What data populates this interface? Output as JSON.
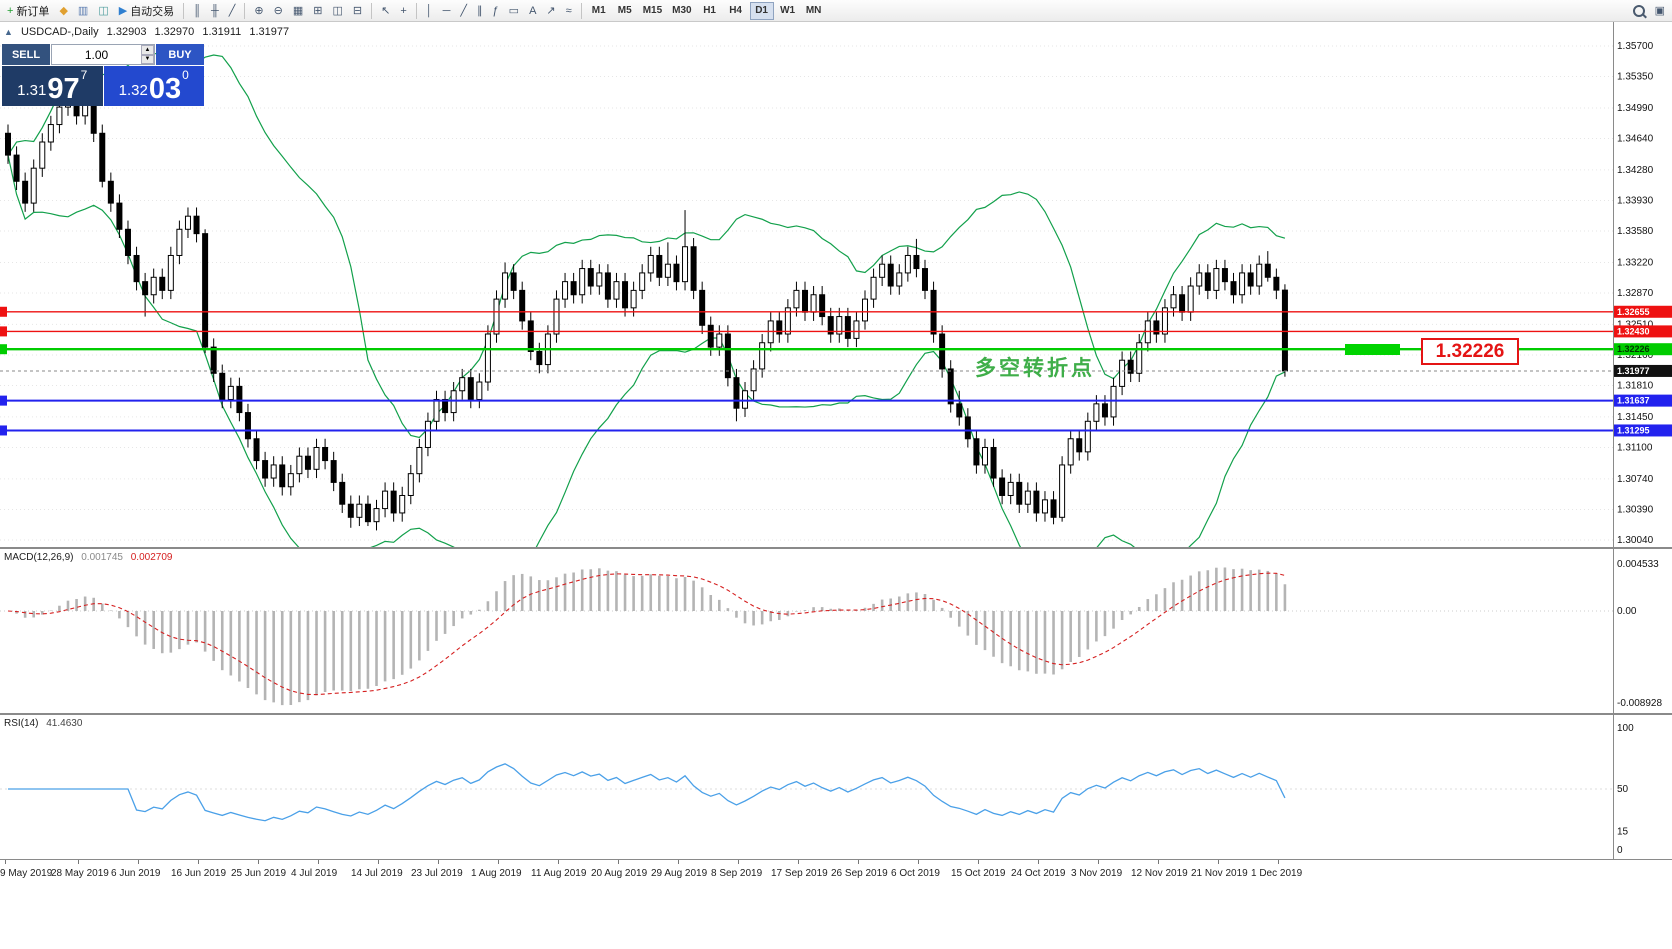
{
  "toolbar": {
    "items": [
      {
        "name": "new-order-button",
        "glyph": "+",
        "label": "新订单",
        "color": "#1f9e2f"
      },
      {
        "name": "metaquotes-icon",
        "glyph": "◆",
        "color": "#e0a030"
      },
      {
        "name": "market-watch-icon",
        "glyph": "▥",
        "color": "#5b7cb0"
      },
      {
        "name": "strategy-tester-icon",
        "glyph": "◫",
        "color": "#4f9e9e"
      },
      {
        "name": "algo-trading-button",
        "glyph": "▶",
        "label": "自动交易",
        "color": "#2f7fd0"
      },
      {
        "name": "sep"
      },
      {
        "name": "bar-chart-icon",
        "glyph": "║"
      },
      {
        "name": "candlestick-chart-icon",
        "glyph": "╫"
      },
      {
        "name": "line-chart-icon",
        "glyph": "╱"
      },
      {
        "name": "sep"
      },
      {
        "name": "zoom-in-icon",
        "glyph": "⊕"
      },
      {
        "name": "zoom-out-icon",
        "glyph": "⊖"
      },
      {
        "name": "grid-icon",
        "glyph": "▦"
      },
      {
        "name": "tile-windows-icon",
        "glyph": "⊞"
      },
      {
        "name": "cascade-windows-icon",
        "glyph": "◫"
      },
      {
        "name": "arrange-windows-icon",
        "glyph": "⊟"
      },
      {
        "name": "sep"
      },
      {
        "name": "cursor-icon",
        "glyph": "↖"
      },
      {
        "name": "crosshair-icon",
        "glyph": "+"
      },
      {
        "name": "sep"
      },
      {
        "name": "vertical-line-icon",
        "glyph": "│"
      },
      {
        "name": "horizontal-line-icon",
        "glyph": "─"
      },
      {
        "name": "trendline-icon",
        "glyph": "╱"
      },
      {
        "name": "equidistant-channel-icon",
        "glyph": "∥"
      },
      {
        "name": "fibonacci-icon",
        "glyph": "ƒ"
      },
      {
        "name": "shapes-icon",
        "glyph": "▭"
      },
      {
        "name": "text-label-icon",
        "glyph": "A"
      },
      {
        "name": "arrows-icon",
        "glyph": "↗"
      },
      {
        "name": "indicators-icon",
        "glyph": "≈"
      },
      {
        "name": "sep"
      }
    ],
    "timeframes": [
      "M1",
      "M5",
      "M15",
      "M30",
      "H1",
      "H4",
      "D1",
      "W1",
      "MN"
    ],
    "active_timeframe": "D1",
    "right_items": [
      {
        "name": "search-button",
        "glyph": ""
      },
      {
        "name": "new-window-button",
        "glyph": "▣"
      }
    ]
  },
  "trade_panel": {
    "sell_label": "SELL",
    "buy_label": "BUY",
    "volume": "1.00",
    "spin_up": "▲",
    "spin_down": "▼",
    "sell_big": "1.31",
    "sell_mid": "97",
    "sell_sup": "7",
    "buy_big": "1.32",
    "buy_mid": "03",
    "buy_sup": "0"
  },
  "chart_header": {
    "collapse_icon": "▲",
    "symbol": "USDCAD-,Daily",
    "open": "1.32903",
    "high": "1.32970",
    "low": "1.31911",
    "close": "1.31977"
  },
  "chart_data": {
    "type": "candlestick",
    "symbol": "USDCAD",
    "timeframe": "Daily",
    "price_axis": [
      "1.35700",
      "1.35350",
      "1.34990",
      "1.34640",
      "1.34280",
      "1.33930",
      "1.33580",
      "1.33220",
      "1.32870",
      "1.32510",
      "1.32160",
      "1.31810",
      "1.31450",
      "1.31100",
      "1.30740",
      "1.30390",
      "1.30040"
    ],
    "price_range": {
      "min": 1.3004,
      "max": 1.357
    },
    "dates": [
      "9 May 2019",
      "28 May 2019",
      "6 Jun 2019",
      "16 Jun 2019",
      "25 Jun 2019",
      "4 Jul 2019",
      "14 Jul 2019",
      "23 Jul 2019",
      "1 Aug 2019",
      "11 Aug 2019",
      "20 Aug 2019",
      "29 Aug 2019",
      "8 Sep 2019",
      "17 Sep 2019",
      "26 Sep 2019",
      "6 Oct 2019",
      "15 Oct 2019",
      "24 Oct 2019",
      "3 Nov 2019",
      "12 Nov 2019",
      "21 Nov 2019",
      "1 Dec 2019"
    ],
    "candles": [
      [
        1.347,
        1.348,
        1.3435,
        1.3445
      ],
      [
        1.3445,
        1.3455,
        1.3405,
        1.3415
      ],
      [
        1.3415,
        1.3425,
        1.338,
        1.339
      ],
      [
        1.339,
        1.344,
        1.338,
        1.343
      ],
      [
        1.343,
        1.347,
        1.342,
        1.346
      ],
      [
        1.346,
        1.349,
        1.345,
        1.348
      ],
      [
        1.348,
        1.351,
        1.347,
        1.35
      ],
      [
        1.35,
        1.3522,
        1.349,
        1.3515
      ],
      [
        1.3515,
        1.3525,
        1.348,
        1.349
      ],
      [
        1.349,
        1.352,
        1.348,
        1.3505
      ],
      [
        1.3505,
        1.3515,
        1.346,
        1.347
      ],
      [
        1.347,
        1.348,
        1.3408,
        1.3415
      ],
      [
        1.3415,
        1.3425,
        1.338,
        1.339
      ],
      [
        1.339,
        1.34,
        1.335,
        1.336
      ],
      [
        1.336,
        1.337,
        1.332,
        1.333
      ],
      [
        1.333,
        1.334,
        1.329,
        1.33
      ],
      [
        1.33,
        1.331,
        1.326,
        1.3285
      ],
      [
        1.3285,
        1.3315,
        1.3275,
        1.3305
      ],
      [
        1.3305,
        1.3315,
        1.328,
        1.329
      ],
      [
        1.329,
        1.334,
        1.328,
        1.333
      ],
      [
        1.333,
        1.337,
        1.332,
        1.336
      ],
      [
        1.336,
        1.3385,
        1.335,
        1.3375
      ],
      [
        1.3375,
        1.3385,
        1.3345,
        1.3355
      ],
      [
        1.3355,
        1.336,
        1.3218,
        1.3225
      ],
      [
        1.3225,
        1.3235,
        1.3185,
        1.3195
      ],
      [
        1.3195,
        1.3205,
        1.3155,
        1.3165
      ],
      [
        1.3165,
        1.319,
        1.3155,
        1.318
      ],
      [
        1.318,
        1.319,
        1.314,
        1.315
      ],
      [
        1.315,
        1.316,
        1.311,
        1.312
      ],
      [
        1.312,
        1.313,
        1.3085,
        1.3095
      ],
      [
        1.3095,
        1.3105,
        1.3065,
        1.3075
      ],
      [
        1.3075,
        1.31,
        1.3065,
        1.309
      ],
      [
        1.309,
        1.31,
        1.3055,
        1.3065
      ],
      [
        1.3065,
        1.309,
        1.3055,
        1.308
      ],
      [
        1.308,
        1.311,
        1.307,
        1.31
      ],
      [
        1.31,
        1.311,
        1.3075,
        1.3085
      ],
      [
        1.3085,
        1.312,
        1.3075,
        1.311
      ],
      [
        1.311,
        1.312,
        1.3085,
        1.3095
      ],
      [
        1.3095,
        1.3105,
        1.306,
        1.307
      ],
      [
        1.307,
        1.308,
        1.3035,
        1.3045
      ],
      [
        1.3045,
        1.3055,
        1.3018,
        1.303
      ],
      [
        1.303,
        1.3055,
        1.302,
        1.3045
      ],
      [
        1.3045,
        1.3055,
        1.302,
        1.3025
      ],
      [
        1.3025,
        1.305,
        1.3015,
        1.304
      ],
      [
        1.304,
        1.307,
        1.303,
        1.306
      ],
      [
        1.306,
        1.307,
        1.3025,
        1.3035
      ],
      [
        1.3035,
        1.3065,
        1.3025,
        1.3055
      ],
      [
        1.3055,
        1.309,
        1.3045,
        1.308
      ],
      [
        1.308,
        1.312,
        1.307,
        1.311
      ],
      [
        1.311,
        1.315,
        1.31,
        1.314
      ],
      [
        1.314,
        1.3175,
        1.313,
        1.3165
      ],
      [
        1.3165,
        1.3175,
        1.314,
        1.315
      ],
      [
        1.315,
        1.3185,
        1.314,
        1.3175
      ],
      [
        1.3175,
        1.32,
        1.3165,
        1.319
      ],
      [
        1.319,
        1.32,
        1.3155,
        1.3165
      ],
      [
        1.3165,
        1.3195,
        1.3155,
        1.3185
      ],
      [
        1.3185,
        1.325,
        1.3175,
        1.324
      ],
      [
        1.324,
        1.329,
        1.323,
        1.328
      ],
      [
        1.328,
        1.3322,
        1.327,
        1.331
      ],
      [
        1.331,
        1.332,
        1.328,
        1.329
      ],
      [
        1.329,
        1.33,
        1.3245,
        1.3255
      ],
      [
        1.3255,
        1.3265,
        1.321,
        1.322
      ],
      [
        1.322,
        1.323,
        1.3195,
        1.3205
      ],
      [
        1.3205,
        1.325,
        1.3195,
        1.324
      ],
      [
        1.324,
        1.329,
        1.323,
        1.328
      ],
      [
        1.328,
        1.331,
        1.327,
        1.33
      ],
      [
        1.33,
        1.331,
        1.3275,
        1.3285
      ],
      [
        1.3285,
        1.3325,
        1.3275,
        1.3315
      ],
      [
        1.3315,
        1.3325,
        1.3285,
        1.3295
      ],
      [
        1.3295,
        1.332,
        1.3285,
        1.331
      ],
      [
        1.331,
        1.332,
        1.327,
        1.328
      ],
      [
        1.328,
        1.331,
        1.327,
        1.33
      ],
      [
        1.33,
        1.331,
        1.326,
        1.327
      ],
      [
        1.327,
        1.33,
        1.326,
        1.329
      ],
      [
        1.329,
        1.332,
        1.328,
        1.331
      ],
      [
        1.331,
        1.334,
        1.33,
        1.333
      ],
      [
        1.333,
        1.334,
        1.3295,
        1.3305
      ],
      [
        1.3305,
        1.3345,
        1.3295,
        1.332
      ],
      [
        1.332,
        1.333,
        1.329,
        1.33
      ],
      [
        1.33,
        1.3382,
        1.329,
        1.334
      ],
      [
        1.334,
        1.335,
        1.328,
        1.329
      ],
      [
        1.329,
        1.33,
        1.324,
        1.325
      ],
      [
        1.325,
        1.326,
        1.3215,
        1.3225
      ],
      [
        1.3225,
        1.325,
        1.3215,
        1.324
      ],
      [
        1.324,
        1.325,
        1.318,
        1.319
      ],
      [
        1.319,
        1.32,
        1.314,
        1.3155
      ],
      [
        1.3155,
        1.3185,
        1.3145,
        1.3175
      ],
      [
        1.3175,
        1.321,
        1.3165,
        1.32
      ],
      [
        1.32,
        1.324,
        1.319,
        1.323
      ],
      [
        1.323,
        1.3265,
        1.322,
        1.3255
      ],
      [
        1.3255,
        1.3265,
        1.323,
        1.324
      ],
      [
        1.324,
        1.328,
        1.323,
        1.327
      ],
      [
        1.327,
        1.33,
        1.326,
        1.329
      ],
      [
        1.329,
        1.33,
        1.3255,
        1.3265
      ],
      [
        1.3265,
        1.3295,
        1.3255,
        1.3285
      ],
      [
        1.3285,
        1.3295,
        1.325,
        1.326
      ],
      [
        1.326,
        1.327,
        1.323,
        1.324
      ],
      [
        1.324,
        1.327,
        1.323,
        1.326
      ],
      [
        1.326,
        1.327,
        1.3225,
        1.3235
      ],
      [
        1.3235,
        1.3265,
        1.3225,
        1.3255
      ],
      [
        1.3255,
        1.329,
        1.3245,
        1.328
      ],
      [
        1.328,
        1.3315,
        1.327,
        1.3305
      ],
      [
        1.3305,
        1.333,
        1.3295,
        1.332
      ],
      [
        1.332,
        1.333,
        1.3285,
        1.3295
      ],
      [
        1.3295,
        1.332,
        1.3285,
        1.331
      ],
      [
        1.331,
        1.334,
        1.33,
        1.333
      ],
      [
        1.333,
        1.3349,
        1.3305,
        1.3315
      ],
      [
        1.3315,
        1.3325,
        1.328,
        1.329
      ],
      [
        1.329,
        1.33,
        1.323,
        1.324
      ],
      [
        1.324,
        1.325,
        1.319,
        1.32
      ],
      [
        1.32,
        1.321,
        1.315,
        1.316
      ],
      [
        1.316,
        1.3175,
        1.3135,
        1.3145
      ],
      [
        1.3145,
        1.3155,
        1.311,
        1.312
      ],
      [
        1.312,
        1.313,
        1.308,
        1.309
      ],
      [
        1.309,
        1.312,
        1.308,
        1.311
      ],
      [
        1.311,
        1.312,
        1.3065,
        1.3075
      ],
      [
        1.3075,
        1.3085,
        1.3045,
        1.3055
      ],
      [
        1.3055,
        1.308,
        1.3045,
        1.307
      ],
      [
        1.307,
        1.308,
        1.3035,
        1.3045
      ],
      [
        1.3045,
        1.307,
        1.3035,
        1.306
      ],
      [
        1.306,
        1.307,
        1.3025,
        1.3035
      ],
      [
        1.3035,
        1.306,
        1.3025,
        1.305
      ],
      [
        1.305,
        1.306,
        1.3022,
        1.303
      ],
      [
        1.303,
        1.31,
        1.3025,
        1.309
      ],
      [
        1.309,
        1.313,
        1.308,
        1.312
      ],
      [
        1.312,
        1.313,
        1.3095,
        1.3105
      ],
      [
        1.3105,
        1.315,
        1.3095,
        1.314
      ],
      [
        1.314,
        1.317,
        1.313,
        1.316
      ],
      [
        1.316,
        1.317,
        1.3135,
        1.3145
      ],
      [
        1.3145,
        1.319,
        1.3135,
        1.318
      ],
      [
        1.318,
        1.322,
        1.317,
        1.321
      ],
      [
        1.321,
        1.322,
        1.3185,
        1.3195
      ],
      [
        1.3195,
        1.324,
        1.3185,
        1.323
      ],
      [
        1.323,
        1.3265,
        1.322,
        1.3255
      ],
      [
        1.3255,
        1.3265,
        1.323,
        1.324
      ],
      [
        1.324,
        1.328,
        1.323,
        1.327
      ],
      [
        1.327,
        1.3295,
        1.326,
        1.3285
      ],
      [
        1.3285,
        1.3295,
        1.3255,
        1.3265
      ],
      [
        1.3265,
        1.3305,
        1.3255,
        1.3295
      ],
      [
        1.3295,
        1.332,
        1.3285,
        1.331
      ],
      [
        1.331,
        1.332,
        1.328,
        1.329
      ],
      [
        1.329,
        1.3325,
        1.328,
        1.3315
      ],
      [
        1.3315,
        1.3325,
        1.329,
        1.33
      ],
      [
        1.33,
        1.331,
        1.3275,
        1.3285
      ],
      [
        1.3285,
        1.332,
        1.3275,
        1.331
      ],
      [
        1.331,
        1.332,
        1.3285,
        1.3295
      ],
      [
        1.3295,
        1.333,
        1.3285,
        1.332
      ],
      [
        1.332,
        1.3335,
        1.33,
        1.3305
      ],
      [
        1.3305,
        1.3315,
        1.328,
        1.32903
      ],
      [
        1.32903,
        1.3297,
        1.31911,
        1.31977
      ]
    ],
    "bollinger": {
      "period": 20,
      "deviation": 2,
      "color": "#12a04b"
    },
    "hlines": [
      {
        "price": 1.32655,
        "label": "1.32655",
        "color": "#ee1111",
        "width": 1.4,
        "text": "#ffffff"
      },
      {
        "price": 1.3243,
        "label": "1.32430",
        "color": "#ee1111",
        "width": 1.4,
        "text": "#ffffff"
      },
      {
        "price": 1.32226,
        "label": "1.32226",
        "color": "#00cc00",
        "width": 2.4,
        "text": "#003300"
      },
      {
        "price": 1.31637,
        "label": "1.31637",
        "color": "#2222ee",
        "width": 2,
        "text": "#ffffff"
      },
      {
        "price": 1.31295,
        "label": "1.31295",
        "color": "#2222ee",
        "width": 2,
        "text": "#ffffff"
      }
    ],
    "current_price": {
      "value": 1.31977,
      "label": "1.31977",
      "color": "#111111"
    },
    "annotation": {
      "text": "多空转折点",
      "color": "#3fae49"
    },
    "callout": {
      "text": "1.32226"
    },
    "macd": {
      "title": "MACD(12,26,9)",
      "value_main": "0.001745",
      "value_signal": "0.002709",
      "axis": [
        "0.004533",
        "0.00",
        "-0.008928"
      ],
      "histogram_color": "#b4b4b4",
      "signal_color": "#d52020"
    },
    "rsi": {
      "title": "RSI(14)",
      "value": "41.4630",
      "axis": [
        "100",
        "50",
        "15",
        "0"
      ],
      "line_color": "#4aa0e8"
    }
  }
}
